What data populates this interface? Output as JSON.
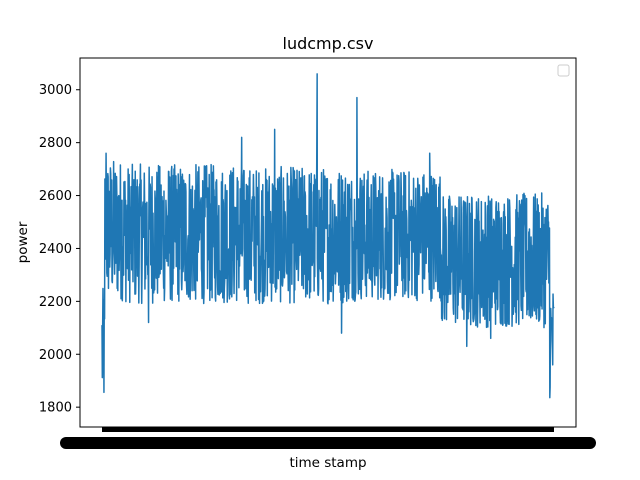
{
  "chart_data": {
    "type": "line",
    "title": "ludcmp.csv",
    "xlabel": "time stamp",
    "ylabel": "power",
    "ylim": [
      1725,
      3120
    ],
    "yticks": [
      1800,
      2000,
      2200,
      2400,
      2600,
      2800,
      3000
    ],
    "grid": false,
    "legend": "top-right (empty)",
    "series": [
      {
        "color": "#1f77b4",
        "segments": [
          {
            "from": 0.0,
            "to": 0.006,
            "low": 1790,
            "high": 2250
          },
          {
            "from": 0.006,
            "to": 0.05,
            "low": 2200,
            "high": 2740
          },
          {
            "from": 0.05,
            "to": 0.3,
            "low": 2190,
            "high": 2720
          },
          {
            "from": 0.3,
            "to": 0.55,
            "low": 2190,
            "high": 2710
          },
          {
            "from": 0.55,
            "to": 0.75,
            "low": 2200,
            "high": 2700
          },
          {
            "from": 0.75,
            "to": 0.99,
            "low": 2100,
            "high": 2610
          },
          {
            "from": 0.99,
            "to": 1.0,
            "low": 1830,
            "high": 2260
          }
        ],
        "spikes": [
          {
            "x": 0.476,
            "y": 3060
          },
          {
            "x": 0.564,
            "y": 2970
          },
          {
            "x": 0.382,
            "y": 2850
          },
          {
            "x": 0.309,
            "y": 2820
          },
          {
            "x": 0.725,
            "y": 2760
          },
          {
            "x": 0.009,
            "y": 2760
          },
          {
            "x": 0.103,
            "y": 2120
          },
          {
            "x": 0.53,
            "y": 2080
          },
          {
            "x": 0.807,
            "y": 2030
          },
          {
            "x": 0.86,
            "y": 2060
          }
        ]
      }
    ]
  }
}
